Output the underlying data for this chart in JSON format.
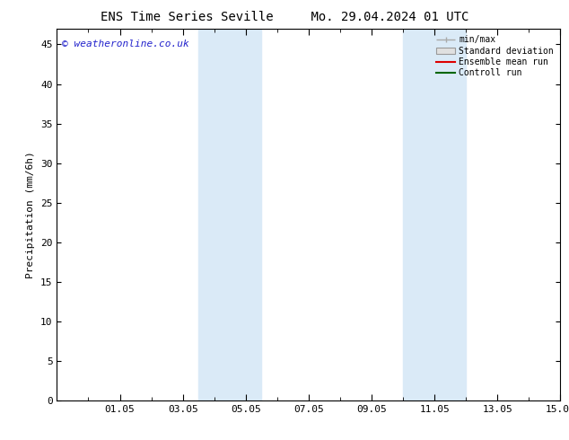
{
  "title_left": "ENS Time Series Seville",
  "title_right": "Mo. 29.04.2024 01 UTC",
  "ylabel": "Precipitation (mm/6h)",
  "ylim": [
    0,
    47
  ],
  "yticks": [
    0,
    5,
    10,
    15,
    20,
    25,
    30,
    35,
    40,
    45
  ],
  "xtick_labels": [
    "01.05",
    "03.05",
    "05.05",
    "07.05",
    "09.05",
    "11.05",
    "13.05",
    "15.05"
  ],
  "xtick_positions": [
    2,
    4,
    6,
    8,
    10,
    12,
    14,
    16
  ],
  "xlim": [
    0,
    16
  ],
  "shade_bands": [
    {
      "xstart": 4.5,
      "xend": 6.5
    },
    {
      "xstart": 11.0,
      "xend": 13.0
    }
  ],
  "shade_color": "#daeaf7",
  "watermark": "© weatheronline.co.uk",
  "watermark_color": "#2222cc",
  "legend_labels": [
    "min/max",
    "Standard deviation",
    "Ensemble mean run",
    "Controll run"
  ],
  "legend_colors_line": [
    "#aaaaaa",
    "#cccccc",
    "#dd0000",
    "#006600"
  ],
  "background_color": "#ffffff",
  "title_fontsize": 10,
  "axis_fontsize": 8,
  "tick_fontsize": 8,
  "watermark_fontsize": 8
}
